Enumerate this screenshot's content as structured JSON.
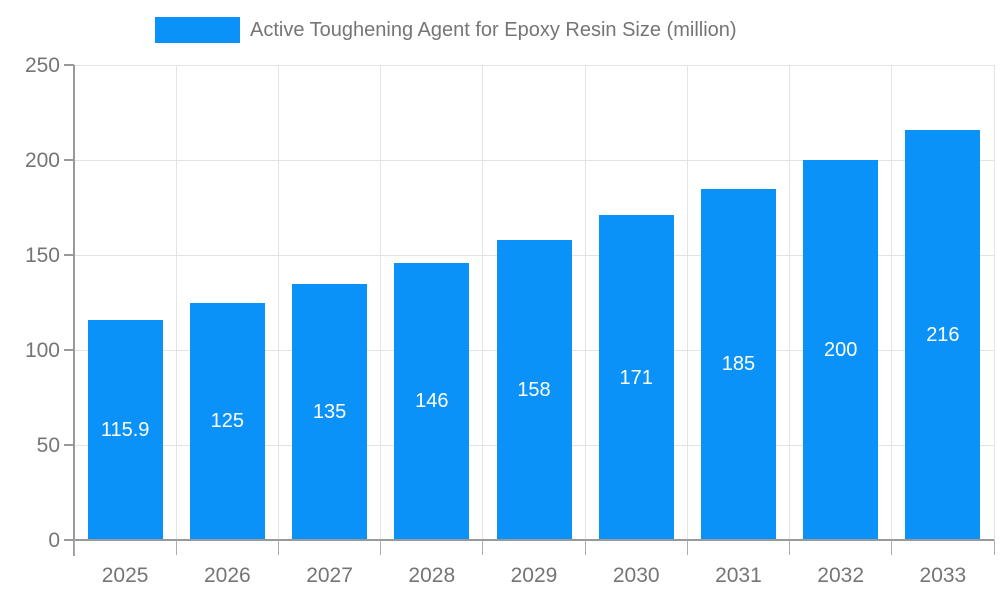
{
  "legend": {
    "label": "Active Toughening Agent for Epoxy Resin Size (million)",
    "swatch_color": "#0B92F8"
  },
  "colors": {
    "bar": "#0B92F8",
    "axis_line": "#999999",
    "grid_line": "#E3E3E3",
    "axis_label": "#757575",
    "value_label": "#FFFFFF",
    "background": "#FFFFFF"
  },
  "chart_data": {
    "type": "bar",
    "title": "Active Toughening Agent for Epoxy Resin Size (million)",
    "categories": [
      "2025",
      "2026",
      "2027",
      "2028",
      "2029",
      "2030",
      "2031",
      "2032",
      "2033"
    ],
    "values": [
      115.9,
      125,
      135,
      146,
      158,
      171,
      185,
      200,
      216
    ],
    "series": [
      {
        "name": "Active Toughening Agent for Epoxy Resin Size (million)",
        "values": [
          115.9,
          125,
          135,
          146,
          158,
          171,
          185,
          200,
          216
        ]
      }
    ],
    "value_label_texts": [
      "115.9",
      "125",
      "135",
      "146",
      "158",
      "171",
      "185",
      "200",
      "216"
    ],
    "xlabel": "",
    "ylabel": "",
    "ylim": [
      0,
      250
    ],
    "yticks": [
      0,
      50,
      100,
      150,
      200,
      250
    ],
    "grid": true,
    "legend_position": "top-center",
    "value_labels_position": "inside-center"
  }
}
